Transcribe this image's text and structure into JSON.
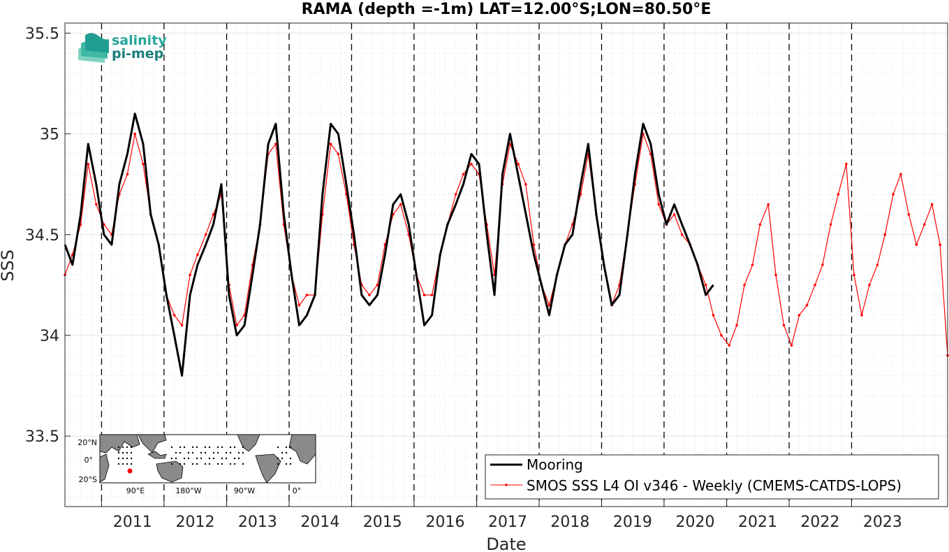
{
  "chart_data": {
    "type": "line",
    "title": "RAMA (depth =-1m) LAT=12.00°S;LON=80.50°E",
    "xlabel": "Date",
    "ylabel": "SSS",
    "xlim": [
      "2010-06-01",
      "2024-07-15"
    ],
    "ylim": [
      33.15,
      35.55
    ],
    "yticks": [
      33.5,
      34,
      34.5,
      35,
      35.5
    ],
    "xtick_labels": [
      "2011",
      "2012",
      "2013",
      "2014",
      "2015",
      "2016",
      "2017",
      "2018",
      "2019",
      "2020",
      "2021",
      "2022",
      "2023"
    ],
    "xtick_dates": [
      "2011-01-01",
      "2012-01-01",
      "2013-01-01",
      "2014-01-01",
      "2015-01-01",
      "2016-01-01",
      "2017-01-01",
      "2018-01-01",
      "2019-01-01",
      "2020-01-01",
      "2021-01-01",
      "2022-01-01",
      "2023-01-01"
    ],
    "grid": "dotted",
    "legend_position": "bottom-right",
    "series": [
      {
        "name": "Mooring",
        "color": "#000000",
        "style": "thick line",
        "x": [
          "2010-06-01",
          "2010-07-15",
          "2010-09-01",
          "2010-10-15",
          "2010-12-01",
          "2011-01-15",
          "2011-03-01",
          "2011-04-15",
          "2011-06-01",
          "2011-07-15",
          "2011-09-01",
          "2011-10-15",
          "2011-12-01",
          "2012-01-15",
          "2012-03-01",
          "2012-04-15",
          "2012-06-01",
          "2012-07-15",
          "2012-09-01",
          "2012-10-15",
          "2012-12-01",
          "2013-01-15",
          "2013-03-01",
          "2013-04-15",
          "2013-06-01",
          "2013-07-15",
          "2013-09-01",
          "2013-10-15",
          "2013-12-01",
          "2014-01-15",
          "2014-03-01",
          "2014-04-15",
          "2014-06-01",
          "2014-07-15",
          "2014-09-01",
          "2014-10-15",
          "2014-12-01",
          "2015-01-15",
          "2015-03-01",
          "2015-04-15",
          "2015-06-01",
          "2015-07-15",
          "2015-09-01",
          "2015-10-15",
          "2015-12-01",
          "2016-01-15",
          "2016-03-01",
          "2016-04-15",
          "2016-06-01",
          "2016-07-15",
          "2016-09-01",
          "2016-10-15",
          "2016-12-01",
          "2017-01-15",
          "2017-03-01",
          "2017-04-15",
          "2017-06-01",
          "2017-07-15",
          "2017-12-01",
          "2018-01-15",
          "2018-03-01",
          "2018-04-15",
          "2018-06-01",
          "2018-07-15",
          "2018-09-01",
          "2018-10-15",
          "2018-12-01",
          "2019-01-15",
          "2019-03-01",
          "2019-04-15",
          "2019-06-01",
          "2019-07-15",
          "2019-09-01",
          "2019-10-15",
          "2019-12-01",
          "2020-01-15",
          "2020-03-01",
          "2020-04-15",
          "2020-06-01",
          "2020-07-15",
          "2020-09-01",
          "2020-10-15"
        ],
        "y": [
          34.45,
          34.35,
          34.6,
          34.95,
          34.75,
          34.5,
          34.45,
          34.75,
          34.9,
          35.1,
          34.95,
          34.6,
          34.45,
          34.2,
          34.0,
          33.8,
          34.2,
          34.35,
          34.45,
          34.55,
          34.75,
          34.2,
          34.0,
          34.05,
          34.3,
          34.55,
          34.95,
          35.05,
          34.6,
          34.3,
          34.05,
          34.1,
          34.2,
          34.7,
          35.05,
          35.0,
          34.75,
          34.5,
          34.2,
          34.15,
          34.2,
          34.4,
          34.65,
          34.7,
          34.55,
          34.3,
          34.05,
          34.1,
          34.4,
          34.55,
          34.65,
          34.75,
          34.9,
          34.85,
          34.5,
          34.2,
          34.8,
          35.0,
          34.4,
          34.25,
          34.1,
          34.3,
          34.45,
          34.5,
          34.75,
          34.95,
          34.6,
          34.35,
          34.15,
          34.2,
          34.5,
          34.8,
          35.05,
          34.95,
          34.7,
          34.55,
          34.65,
          34.55,
          34.45,
          34.35,
          34.2,
          34.25
        ]
      },
      {
        "name": "SMOS SSS L4 OI v346 - Weekly (CMEMS-CATDS-LOPS)",
        "color": "#ff0000",
        "style": "thin line with dot markers",
        "x": [
          "2010-06-01",
          "2010-07-15",
          "2010-09-01",
          "2010-10-15",
          "2010-12-01",
          "2011-01-15",
          "2011-03-01",
          "2011-04-15",
          "2011-06-01",
          "2011-07-15",
          "2011-09-01",
          "2011-10-15",
          "2011-12-01",
          "2012-01-15",
          "2012-03-01",
          "2012-04-15",
          "2012-06-01",
          "2012-07-15",
          "2012-09-01",
          "2012-10-15",
          "2012-12-01",
          "2013-01-15",
          "2013-03-01",
          "2013-04-15",
          "2013-06-01",
          "2013-07-15",
          "2013-09-01",
          "2013-10-15",
          "2013-12-01",
          "2014-01-15",
          "2014-03-01",
          "2014-04-15",
          "2014-06-01",
          "2014-07-15",
          "2014-09-01",
          "2014-10-15",
          "2014-12-01",
          "2015-01-15",
          "2015-03-01",
          "2015-04-15",
          "2015-06-01",
          "2015-07-15",
          "2015-09-01",
          "2015-10-15",
          "2015-12-01",
          "2016-01-15",
          "2016-03-01",
          "2016-04-15",
          "2016-06-01",
          "2016-07-15",
          "2016-09-01",
          "2016-10-15",
          "2016-12-01",
          "2017-01-15",
          "2017-03-01",
          "2017-04-15",
          "2017-06-01",
          "2017-07-15",
          "2017-09-01",
          "2017-10-15",
          "2017-12-01",
          "2018-01-15",
          "2018-03-01",
          "2018-04-15",
          "2018-06-01",
          "2018-07-15",
          "2018-09-01",
          "2018-10-15",
          "2018-12-01",
          "2019-01-15",
          "2019-03-01",
          "2019-04-15",
          "2019-06-01",
          "2019-07-15",
          "2019-09-01",
          "2019-10-15",
          "2019-12-01",
          "2020-01-15",
          "2020-03-01",
          "2020-04-15",
          "2020-06-01",
          "2020-07-15",
          "2020-09-01",
          "2020-10-15",
          "2020-12-01",
          "2021-01-15",
          "2021-03-01",
          "2021-04-15",
          "2021-06-01",
          "2021-07-15",
          "2021-09-01",
          "2021-10-15",
          "2021-12-01",
          "2022-01-15",
          "2022-03-01",
          "2022-04-15",
          "2022-06-01",
          "2022-07-15",
          "2022-09-01",
          "2022-10-15",
          "2022-12-01",
          "2023-01-15",
          "2023-03-01",
          "2023-04-15",
          "2023-06-01",
          "2023-07-15",
          "2023-09-01",
          "2023-10-15",
          "2023-12-01",
          "2024-01-15",
          "2024-03-01",
          "2024-04-15",
          "2024-06-01",
          "2024-07-15"
        ],
        "y": [
          34.3,
          34.4,
          34.55,
          34.85,
          34.65,
          34.55,
          34.5,
          34.7,
          34.8,
          35.0,
          34.85,
          34.6,
          34.45,
          34.2,
          34.1,
          34.05,
          34.3,
          34.4,
          34.5,
          34.6,
          34.7,
          34.25,
          34.05,
          34.1,
          34.35,
          34.55,
          34.9,
          34.95,
          34.55,
          34.3,
          34.15,
          34.2,
          34.2,
          34.6,
          34.95,
          34.9,
          34.7,
          34.45,
          34.25,
          34.2,
          34.25,
          34.45,
          34.6,
          34.65,
          34.5,
          34.3,
          34.2,
          34.2,
          34.4,
          34.55,
          34.7,
          34.8,
          34.85,
          34.8,
          34.55,
          34.3,
          34.75,
          34.95,
          34.85,
          34.75,
          34.45,
          34.25,
          34.15,
          34.3,
          34.45,
          34.55,
          34.7,
          34.9,
          34.6,
          34.35,
          34.15,
          34.25,
          34.5,
          34.75,
          35.0,
          34.9,
          34.65,
          34.55,
          34.6,
          34.5,
          34.45,
          34.35,
          34.25,
          34.1,
          34.0,
          33.95,
          34.05,
          34.25,
          34.35,
          34.55,
          34.65,
          34.3,
          34.05,
          33.95,
          34.1,
          34.15,
          34.25,
          34.35,
          34.55,
          34.7,
          34.85,
          34.3,
          34.1,
          34.25,
          34.35,
          34.5,
          34.7,
          34.8,
          34.6,
          34.45,
          34.55,
          34.65,
          34.45,
          33.9
        ]
      }
    ]
  },
  "logo": {
    "line1": "salinity",
    "line2": "pi-mep"
  },
  "inset_map": {
    "lat_labels": [
      "20°N",
      "0°",
      "20°S"
    ],
    "lon_labels": [
      "90°E",
      "180°W",
      "90°W",
      "0°"
    ]
  }
}
